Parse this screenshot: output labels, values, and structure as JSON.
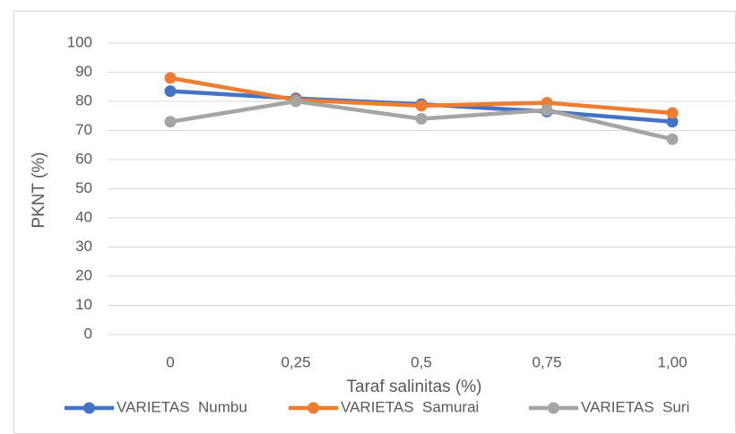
{
  "chart_data": {
    "type": "line",
    "x_label": "Taraf salinitas (%)",
    "y_label": "PKNT (%)",
    "categories": [
      "0",
      "0,25",
      "0,5",
      "0,75",
      "1,00"
    ],
    "series": [
      {
        "name": "VARIETAS  Numbu",
        "color": "#4472c4",
        "values": [
          83.5,
          81,
          79,
          76.5,
          73
        ]
      },
      {
        "name": "VARIETAS  Samurai",
        "color": "#ed7d31",
        "values": [
          88,
          80.5,
          78.5,
          79.5,
          76
        ]
      },
      {
        "name": "VARIETAS  Suri",
        "color": "#a5a5a5",
        "values": [
          73,
          80,
          74,
          77,
          67
        ]
      }
    ],
    "ylim": [
      0,
      100
    ],
    "yticks": [
      0,
      10,
      20,
      30,
      40,
      50,
      60,
      70,
      80,
      90,
      100
    ],
    "grid": true,
    "legend": "bottom"
  }
}
